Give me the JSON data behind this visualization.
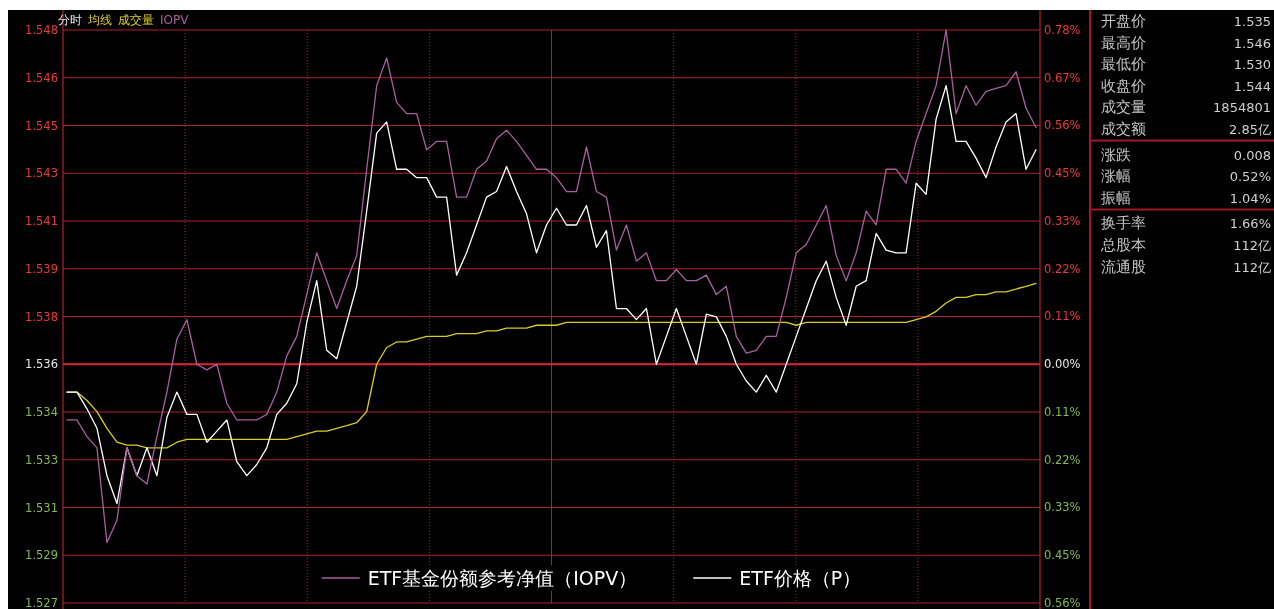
{
  "chart_data": [
    {
      "type": "line",
      "title": "分时",
      "annotations": [
        "均线",
        "成交量",
        "IOPV"
      ],
      "categories": [
        null,
        null,
        null,
        null,
        null,
        null,
        null,
        null,
        null,
        null,
        null,
        null,
        null,
        null,
        null,
        null,
        null,
        null,
        null,
        null,
        null,
        null,
        null,
        null,
        null,
        null,
        null,
        null,
        null,
        null,
        null,
        null,
        null,
        null,
        null,
        null,
        null,
        null,
        null,
        null,
        null,
        null,
        null,
        null,
        null,
        null,
        null,
        null,
        null,
        null,
        null,
        null,
        null,
        null,
        null,
        null,
        null,
        null,
        null,
        null,
        null,
        null,
        null,
        null,
        null,
        null,
        null,
        null,
        null,
        null,
        null,
        null,
        null,
        null,
        null,
        null,
        null,
        null,
        null,
        null,
        null,
        null,
        null,
        null,
        null,
        null,
        null,
        null,
        null,
        null,
        null,
        null,
        null,
        null,
        null,
        null,
        null,
        null
      ],
      "series": [
        {
          "name": "ETF基金份额参考净值（IOPV）",
          "color": "#a8609c",
          "values": [
            1.534,
            1.534,
            1.5334,
            1.533,
            1.5296,
            1.5304,
            1.533,
            1.532,
            1.5317,
            1.5334,
            1.535,
            1.5369,
            1.5376,
            1.536,
            1.5358,
            1.536,
            1.5346,
            1.534,
            1.534,
            1.534,
            1.5342,
            1.535,
            1.5363,
            1.537,
            1.5385,
            1.54,
            1.539,
            1.538,
            1.539,
            1.5399,
            1.543,
            1.546,
            1.547,
            1.5454,
            1.545,
            1.545,
            1.5437,
            1.544,
            1.544,
            1.542,
            1.542,
            1.543,
            1.5433,
            1.5441,
            1.5444,
            1.544,
            1.5435,
            1.543,
            1.543,
            1.5427,
            1.5422,
            1.5422,
            1.5438,
            1.5422,
            1.542,
            1.5401,
            1.541,
            1.5397,
            1.54,
            1.539,
            1.539,
            1.5394,
            1.539,
            1.539,
            1.5392,
            1.5385,
            1.5388,
            1.537,
            1.5364,
            1.5365,
            1.537,
            1.537,
            1.5384,
            1.54,
            1.5403,
            1.541,
            1.5417,
            1.5399,
            1.539,
            1.54,
            1.5415,
            1.541,
            1.543,
            1.543,
            1.5425,
            1.544,
            1.545,
            1.546,
            1.548,
            1.545,
            1.546,
            1.5453,
            1.5458,
            1.5459,
            1.546,
            1.5465,
            1.5452,
            1.5445
          ]
        },
        {
          "name": "ETF价格（P）",
          "color": "#ffffff",
          "values": [
            1.535,
            1.535,
            1.5344,
            1.5337,
            1.532,
            1.531,
            1.533,
            1.532,
            1.533,
            1.532,
            1.5341,
            1.535,
            1.5342,
            1.5342,
            1.5332,
            1.5336,
            1.534,
            1.5325,
            1.532,
            1.5324,
            1.533,
            1.5342,
            1.5346,
            1.5353,
            1.5375,
            1.539,
            1.5365,
            1.5362,
            1.5375,
            1.5388,
            1.5415,
            1.5443,
            1.5447,
            1.543,
            1.543,
            1.5427,
            1.5427,
            1.542,
            1.542,
            1.5392,
            1.54,
            1.541,
            1.542,
            1.5422,
            1.5431,
            1.5422,
            1.5414,
            1.54,
            1.541,
            1.5416,
            1.541,
            1.541,
            1.5417,
            1.5402,
            1.5408,
            1.538,
            1.538,
            1.5376,
            1.538,
            1.536,
            1.537,
            1.538,
            1.537,
            1.536,
            1.5378,
            1.5377,
            1.537,
            1.536,
            1.5354,
            1.535,
            1.5356,
            1.535,
            1.536,
            1.537,
            1.538,
            1.539,
            1.5397,
            1.5384,
            1.5374,
            1.5388,
            1.539,
            1.5407,
            1.5401,
            1.54,
            1.54,
            1.5425,
            1.5421,
            1.5448,
            1.546,
            1.544,
            1.544,
            1.5434,
            1.5427,
            1.5438,
            1.5447,
            1.545,
            1.543,
            1.5437
          ]
        },
        {
          "color": "#d8cc20",
          "values": [
            1.535,
            1.535,
            1.5347,
            1.5343,
            1.5337,
            1.5332,
            1.5331,
            1.5331,
            1.533,
            1.533,
            1.533,
            1.5332,
            1.5333,
            1.5333,
            1.5333,
            1.5333,
            1.5333,
            1.5333,
            1.5333,
            1.5333,
            1.5333,
            1.5333,
            1.5333,
            1.5334,
            1.5335,
            1.5336,
            1.5336,
            1.5337,
            1.5338,
            1.5339,
            1.5343,
            1.536,
            1.5366,
            1.5368,
            1.5368,
            1.5369,
            1.537,
            1.537,
            1.537,
            1.5371,
            1.5371,
            1.5371,
            1.5372,
            1.5372,
            1.5373,
            1.5373,
            1.5373,
            1.5374,
            1.5374,
            1.5374,
            1.5375,
            1.5375,
            1.5375,
            1.5375,
            1.5375,
            1.5375,
            1.5375,
            1.5375,
            1.5375,
            1.5375,
            1.5375,
            1.5375,
            1.5375,
            1.5375,
            1.5375,
            1.5375,
            1.5375,
            1.5375,
            1.5375,
            1.5375,
            1.5375,
            1.5375,
            1.5375,
            1.5374,
            1.5375,
            1.5375,
            1.5375,
            1.5375,
            1.5375,
            1.5375,
            1.5375,
            1.5375,
            1.5375,
            1.5375,
            1.5375,
            1.5376,
            1.5377,
            1.5379,
            1.5382,
            1.5384,
            1.5384,
            1.5385,
            1.5385,
            1.5386,
            1.5386,
            1.5387,
            1.5388,
            1.5389
          ]
        }
      ],
      "ylim": [
        1.5274286,
        1.548
      ],
      "yticks": [
        {
          "value": 1.5274286,
          "label": "1.527"
        },
        {
          "value": 1.5291429,
          "label": "1.529"
        },
        {
          "value": 1.5308571,
          "label": "1.531"
        },
        {
          "value": 1.5325714,
          "label": "1.533"
        },
        {
          "value": 1.5342857,
          "label": "1.534"
        },
        1.536,
        {
          "value": 1.5377143,
          "label": "1.538"
        },
        {
          "value": 1.5394286,
          "label": "1.539"
        },
        {
          "value": 1.5411429,
          "label": "1.541"
        },
        {
          "value": 1.5428571,
          "label": "1.543"
        },
        {
          "value": 1.5445714,
          "label": "1.545"
        },
        {
          "value": 1.5462857,
          "label": "1.546"
        },
        1.548
      ],
      "y2lim": [
        -0.5571429,
        0.78
      ],
      "y2ticks": [
        {
          "value": -0.5571429,
          "label": "0.56%"
        },
        {
          "value": -0.4457143,
          "label": "0.45%"
        },
        {
          "value": -0.3342857,
          "label": "0.33%"
        },
        {
          "value": -0.2228571,
          "label": "0.22%"
        },
        {
          "value": -0.1114286,
          "label": "0.11%"
        },
        {
          "value": 0,
          "label": "0.00%"
        },
        {
          "value": 0.1114286,
          "label": "0.11%"
        },
        {
          "value": 0.2228571,
          "label": "0.22%"
        },
        {
          "value": 0.3342857,
          "label": "0.33%"
        },
        {
          "value": 0.4457143,
          "label": "0.45%"
        },
        {
          "value": 0.5571429,
          "label": "0.56%"
        },
        {
          "value": 0.6685714,
          "label": "0.67%"
        },
        {
          "value": 0.78,
          "label": "0.78%"
        }
      ],
      "ref_lines": [
        {
          "axis": "y2",
          "value": 0,
          "color": "#e02030"
        }
      ],
      "grid": true,
      "legend": "bottom"
    },
    {
      "type": "other",
      "categories": [
        "开盘价",
        "最高价",
        "最低价",
        "收盘价",
        "成交量",
        "成交额",
        "涨跌",
        "涨幅",
        "振幅",
        "换手率",
        "总股本",
        "流通股"
      ],
      "value_labels": [
        "1.535",
        "1.546",
        "1.530",
        "1.544",
        "1854801",
        "2.85亿",
        "0.008",
        "0.52%",
        "1.04%",
        "1.66%",
        "112亿",
        "112亿"
      ]
    }
  ]
}
